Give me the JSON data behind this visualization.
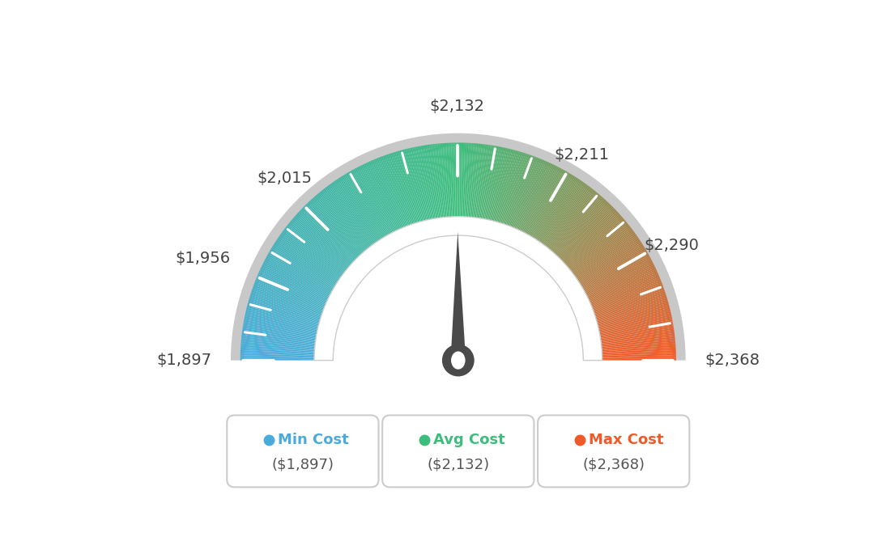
{
  "min_val": 1897,
  "max_val": 2368,
  "avg_val": 2132,
  "min_cost_label": "Min Cost",
  "avg_cost_label": "Avg Cost",
  "max_cost_label": "Max Cost",
  "min_cost_value": "($1,897)",
  "avg_cost_value": "($2,132)",
  "max_cost_value": "($2,368)",
  "min_color": "#4AABDB",
  "avg_color": "#3DBD7D",
  "max_color": "#F05A28",
  "background_color": "#ffffff",
  "needle_color": "#4a4a4a",
  "label_values": [
    1897,
    1956,
    2015,
    2132,
    2211,
    2290,
    2368
  ],
  "label_strings": [
    "$1,897",
    "$1,956",
    "$2,015",
    "$2,132",
    "$2,211",
    "$2,290",
    "$2,368"
  ]
}
